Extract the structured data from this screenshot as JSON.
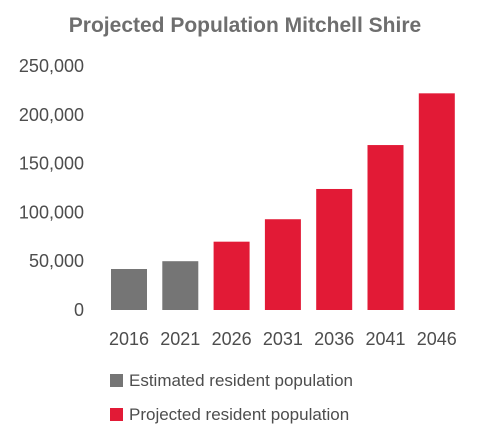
{
  "chart_data": {
    "type": "bar",
    "title": "Projected Population Mitchell Shire",
    "xlabel": "",
    "ylabel": "",
    "categories": [
      "2016",
      "2021",
      "2026",
      "2031",
      "2036",
      "2041",
      "2046"
    ],
    "values": [
      42000,
      50000,
      70000,
      93000,
      124000,
      169000,
      222000
    ],
    "series_assignment": [
      "estimated",
      "estimated",
      "projected",
      "projected",
      "projected",
      "projected",
      "projected"
    ],
    "series": [
      {
        "key": "estimated",
        "name": "Estimated resident population",
        "color": "#757575"
      },
      {
        "key": "projected",
        "name": "Projected resident population",
        "color": "#e21a36"
      }
    ],
    "ylim": [
      0,
      250000
    ],
    "yticks": [
      0,
      50000,
      100000,
      150000,
      200000,
      250000
    ],
    "ytick_labels": [
      "0",
      "50,000",
      "100,000",
      "150,000",
      "200,000",
      "250,000"
    ],
    "grid": false,
    "legend_position": "bottom-left"
  }
}
